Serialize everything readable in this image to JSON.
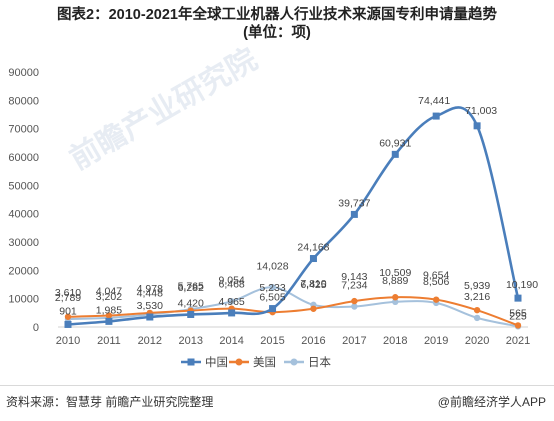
{
  "title_line1": "图表2：2010-2021年全球工业机器人行业技术来源国专利申请量趋势",
  "title_line2": "(单位：项)",
  "source": "资料来源：智慧芽 前瞻产业研究院整理",
  "app_credit": "@前瞻经济学人APP",
  "watermark": "前瞻产业研究院",
  "colors": {
    "china": "#4a7ebb",
    "usa": "#ed7d31",
    "japan": "#a5c1dc"
  },
  "chart_data": {
    "type": "line",
    "categories": [
      "2010",
      "2011",
      "2012",
      "2013",
      "2014",
      "2015",
      "2016",
      "2017",
      "2018",
      "2019",
      "2020",
      "2021"
    ],
    "series": [
      {
        "name": "中国",
        "values": [
          901,
          1985,
          3530,
          4420,
          4965,
          6505,
          24168,
          39737,
          60931,
          74441,
          71003,
          10190
        ],
        "labels": [
          "901",
          "1,985",
          "3,530",
          "4,420",
          "4,965",
          "6,505",
          "24,168",
          "39,737",
          "60,931",
          "74,441",
          "71,003",
          "10,190"
        ]
      },
      {
        "name": "美国",
        "values": [
          3610,
          4047,
          4978,
          5765,
          6468,
          5233,
          6425,
          9143,
          10509,
          9654,
          5939,
          565
        ],
        "labels": [
          "3,610",
          "4,047",
          "4,978",
          "5,765",
          "6,468",
          "5,233",
          "6,425",
          "9,143",
          "10,509",
          "9,654",
          "5,939",
          "565"
        ]
      },
      {
        "name": "日本",
        "values": [
          2789,
          3202,
          4448,
          6282,
          9054,
          14028,
          7810,
          7234,
          8889,
          8506,
          3216,
          225
        ],
        "labels": [
          "2,789",
          "3,202",
          "4,448",
          "6,282",
          "9,054",
          "14,028",
          "7,810",
          "7,234",
          "8,889",
          "8,506",
          "3,216",
          "225"
        ]
      }
    ],
    "ylim": [
      0,
      90000
    ],
    "yticks": [
      "0",
      "10000",
      "20000",
      "30000",
      "40000",
      "50000",
      "60000",
      "70000",
      "80000",
      "90000"
    ],
    "legend_position": "bottom",
    "grid": false
  }
}
